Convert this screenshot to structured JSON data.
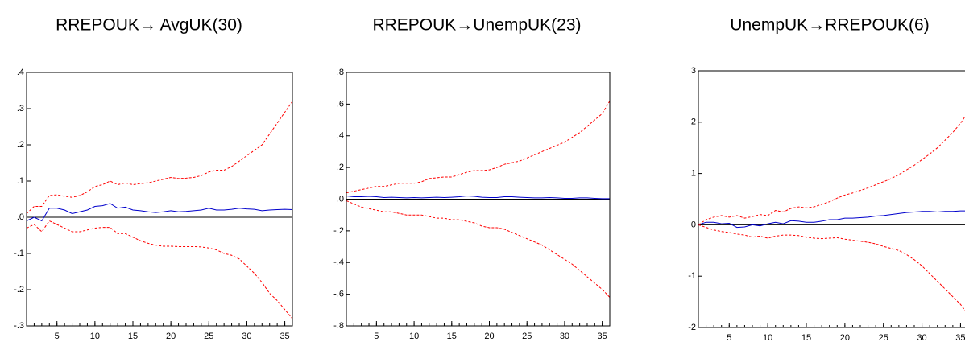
{
  "chart_data": [
    {
      "type": "line",
      "title": "RREPOUK→ AvgUK(30)",
      "x": [
        1,
        2,
        3,
        4,
        5,
        6,
        7,
        8,
        9,
        10,
        11,
        12,
        13,
        14,
        15,
        16,
        17,
        18,
        19,
        20,
        21,
        22,
        23,
        24,
        25,
        26,
        27,
        28,
        29,
        30,
        31,
        32,
        33,
        34,
        35,
        36
      ],
      "xlim": [
        1,
        36
      ],
      "xticks": [
        5,
        10,
        15,
        20,
        25,
        30,
        35
      ],
      "ylim": [
        -0.3,
        0.4
      ],
      "yticks": [
        {
          "value": 0.4,
          "label": ".4"
        },
        {
          "value": 0.3,
          "label": ".3"
        },
        {
          "value": 0.2,
          "label": ".2"
        },
        {
          "value": 0.1,
          "label": ".1"
        },
        {
          "value": 0,
          "label": ".0"
        },
        {
          "value": -0.1,
          "label": "-.1"
        },
        {
          "value": -0.2,
          "label": "-.2"
        },
        {
          "value": -0.3,
          "label": "-.3"
        }
      ],
      "series": [
        {
          "color": "#0000cc",
          "style": "solid",
          "values": [
            -0.01,
            0.0,
            -0.01,
            0.025,
            0.025,
            0.02,
            0.01,
            0.015,
            0.02,
            0.03,
            0.032,
            0.038,
            0.025,
            0.028,
            0.02,
            0.018,
            0.015,
            0.013,
            0.015,
            0.018,
            0.015,
            0.016,
            0.018,
            0.02,
            0.025,
            0.02,
            0.02,
            0.022,
            0.025,
            0.023,
            0.022,
            0.018,
            0.02,
            0.021,
            0.022,
            0.021
          ]
        },
        {
          "color": "#ff0000",
          "style": "dashed",
          "values": [
            0.01,
            0.03,
            0.03,
            0.06,
            0.062,
            0.058,
            0.055,
            0.06,
            0.07,
            0.085,
            0.09,
            0.1,
            0.09,
            0.095,
            0.09,
            0.093,
            0.095,
            0.1,
            0.105,
            0.11,
            0.107,
            0.108,
            0.11,
            0.115,
            0.125,
            0.13,
            0.13,
            0.14,
            0.155,
            0.17,
            0.185,
            0.2,
            0.23,
            0.26,
            0.29,
            0.32
          ]
        },
        {
          "color": "#ff0000",
          "style": "dashed",
          "values": [
            -0.03,
            -0.02,
            -0.04,
            -0.01,
            -0.02,
            -0.03,
            -0.04,
            -0.04,
            -0.035,
            -0.03,
            -0.028,
            -0.028,
            -0.045,
            -0.045,
            -0.055,
            -0.065,
            -0.072,
            -0.077,
            -0.08,
            -0.08,
            -0.081,
            -0.081,
            -0.081,
            -0.082,
            -0.085,
            -0.09,
            -0.1,
            -0.105,
            -0.115,
            -0.135,
            -0.155,
            -0.18,
            -0.21,
            -0.23,
            -0.255,
            -0.28
          ]
        }
      ]
    },
    {
      "type": "line",
      "title": "RREPOUK→UnempUK(23)",
      "x": [
        1,
        2,
        3,
        4,
        5,
        6,
        7,
        8,
        9,
        10,
        11,
        12,
        13,
        14,
        15,
        16,
        17,
        18,
        19,
        20,
        21,
        22,
        23,
        24,
        25,
        26,
        27,
        28,
        29,
        30,
        31,
        32,
        33,
        34,
        35,
        36
      ],
      "xlim": [
        1,
        36
      ],
      "xticks": [
        5,
        10,
        15,
        20,
        25,
        30,
        35
      ],
      "ylim": [
        -0.8,
        0.8
      ],
      "yticks": [
        {
          "value": 0.8,
          "label": ".8"
        },
        {
          "value": 0.6,
          "label": ".6"
        },
        {
          "value": 0.4,
          "label": ".4"
        },
        {
          "value": 0.2,
          "label": ".2"
        },
        {
          "value": 0,
          "label": ".0"
        },
        {
          "value": -0.2,
          "label": "-.2"
        },
        {
          "value": -0.4,
          "label": "-.4"
        },
        {
          "value": -0.6,
          "label": "-.6"
        },
        {
          "value": -0.8,
          "label": "-.8"
        }
      ],
      "series": [
        {
          "color": "#0000cc",
          "style": "solid",
          "values": [
            0.02,
            0.015,
            0.015,
            0.018,
            0.015,
            0.01,
            0.012,
            0.01,
            0.008,
            0.01,
            0.008,
            0.01,
            0.012,
            0.01,
            0.012,
            0.015,
            0.02,
            0.018,
            0.012,
            0.01,
            0.01,
            0.015,
            0.015,
            0.012,
            0.01,
            0.008,
            0.008,
            0.01,
            0.008,
            0.005,
            0.005,
            0.008,
            0.008,
            0.005,
            0.003,
            0.003
          ]
        },
        {
          "color": "#ff0000",
          "style": "dashed",
          "values": [
            0.04,
            0.05,
            0.06,
            0.07,
            0.08,
            0.08,
            0.09,
            0.1,
            0.1,
            0.1,
            0.11,
            0.13,
            0.135,
            0.14,
            0.14,
            0.155,
            0.17,
            0.18,
            0.18,
            0.185,
            0.2,
            0.22,
            0.23,
            0.24,
            0.26,
            0.28,
            0.3,
            0.32,
            0.34,
            0.36,
            0.39,
            0.42,
            0.46,
            0.5,
            0.54,
            0.62
          ]
        },
        {
          "color": "#ff0000",
          "style": "dashed",
          "values": [
            -0.01,
            -0.03,
            -0.05,
            -0.06,
            -0.07,
            -0.08,
            -0.08,
            -0.09,
            -0.1,
            -0.1,
            -0.1,
            -0.11,
            -0.12,
            -0.12,
            -0.13,
            -0.13,
            -0.14,
            -0.15,
            -0.17,
            -0.18,
            -0.18,
            -0.19,
            -0.21,
            -0.23,
            -0.25,
            -0.27,
            -0.29,
            -0.32,
            -0.35,
            -0.38,
            -0.41,
            -0.45,
            -0.49,
            -0.53,
            -0.57,
            -0.62
          ]
        }
      ]
    },
    {
      "type": "line",
      "title": "UnempUK→RREPOUK(6)",
      "x": [
        1,
        2,
        3,
        4,
        5,
        6,
        7,
        8,
        9,
        10,
        11,
        12,
        13,
        14,
        15,
        16,
        17,
        18,
        19,
        20,
        21,
        22,
        23,
        24,
        25,
        26,
        27,
        28,
        29,
        30,
        31,
        32,
        33,
        34,
        35,
        36
      ],
      "xlim": [
        1,
        36
      ],
      "xticks": [
        5,
        10,
        15,
        20,
        25,
        30,
        35
      ],
      "ylim": [
        -2,
        3
      ],
      "yticks": [
        3,
        2,
        1,
        0,
        -1,
        -2
      ],
      "series": [
        {
          "color": "#0000cc",
          "style": "solid",
          "values": [
            0,
            0.05,
            0.05,
            0.02,
            0.03,
            -0.05,
            -0.04,
            0.0,
            -0.02,
            0.02,
            0.05,
            0.02,
            0.08,
            0.07,
            0.05,
            0.05,
            0.07,
            0.1,
            0.1,
            0.13,
            0.13,
            0.14,
            0.15,
            0.17,
            0.18,
            0.2,
            0.22,
            0.24,
            0.25,
            0.26,
            0.26,
            0.25,
            0.26,
            0.26,
            0.27,
            0.27
          ]
        },
        {
          "color": "#ff0000",
          "style": "dashed",
          "values": [
            0,
            0.1,
            0.15,
            0.18,
            0.15,
            0.18,
            0.13,
            0.16,
            0.2,
            0.18,
            0.28,
            0.25,
            0.32,
            0.35,
            0.33,
            0.35,
            0.4,
            0.45,
            0.52,
            0.58,
            0.62,
            0.67,
            0.72,
            0.78,
            0.84,
            0.9,
            0.98,
            1.07,
            1.16,
            1.27,
            1.38,
            1.5,
            1.65,
            1.8,
            1.98,
            2.2
          ]
        },
        {
          "color": "#ff0000",
          "style": "dashed",
          "values": [
            0,
            -0.05,
            -0.1,
            -0.13,
            -0.15,
            -0.18,
            -0.2,
            -0.24,
            -0.22,
            -0.26,
            -0.22,
            -0.2,
            -0.2,
            -0.21,
            -0.24,
            -0.26,
            -0.27,
            -0.26,
            -0.25,
            -0.28,
            -0.3,
            -0.32,
            -0.34,
            -0.37,
            -0.42,
            -0.46,
            -0.5,
            -0.58,
            -0.68,
            -0.8,
            -0.95,
            -1.1,
            -1.25,
            -1.4,
            -1.55,
            -1.75
          ]
        }
      ]
    }
  ]
}
